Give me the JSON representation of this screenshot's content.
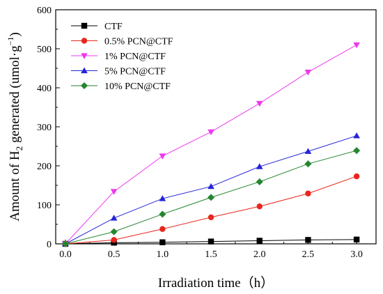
{
  "chart_data": {
    "type": "line",
    "xlabel": "Irradiation time（h）",
    "ylabel": {
      "main": "Amount of H",
      "sub": "2",
      "rest": " generated (umol·g",
      "sup": "−1",
      "close": ")"
    },
    "xlim": [
      -0.1,
      3.2
    ],
    "ylim": [
      0,
      600
    ],
    "xticks": [
      0.0,
      0.5,
      1.0,
      1.5,
      2.0,
      2.5,
      3.0
    ],
    "xtick_labels": [
      "0.0",
      "0.5",
      "1.0",
      "1.5",
      "2.0",
      "2.5",
      "3.0"
    ],
    "yticks": [
      0,
      100,
      200,
      300,
      400,
      500,
      600
    ],
    "ytick_labels": [
      "0",
      "100",
      "200",
      "300",
      "400",
      "500",
      "600"
    ],
    "grid": false,
    "legend_position": "top-left",
    "x": [
      0.0,
      0.5,
      1.0,
      1.5,
      2.0,
      2.5,
      3.0
    ],
    "series": [
      {
        "name": "CTF",
        "marker": "square",
        "color": "#000000",
        "values": [
          0,
          3,
          4,
          6,
          8,
          10,
          11
        ]
      },
      {
        "name": "0.5% PCN@CTF",
        "marker": "circle",
        "color": "#e8261c",
        "values": [
          0,
          10,
          38,
          68,
          96,
          129,
          173
        ]
      },
      {
        "name": "1% PCN@CTF",
        "marker": "triangle-down",
        "color": "#ee38ee",
        "values": [
          0,
          134,
          225,
          287,
          360,
          440,
          510
        ]
      },
      {
        "name": "5% PCN@CTF",
        "marker": "triangle-up",
        "color": "#2424d8",
        "values": [
          0,
          66,
          116,
          147,
          198,
          237,
          277
        ]
      },
      {
        "name": "10% PCN@CTF",
        "marker": "diamond",
        "color": "#24862e",
        "values": [
          0,
          31,
          76,
          119,
          159,
          205,
          239
        ]
      }
    ]
  }
}
